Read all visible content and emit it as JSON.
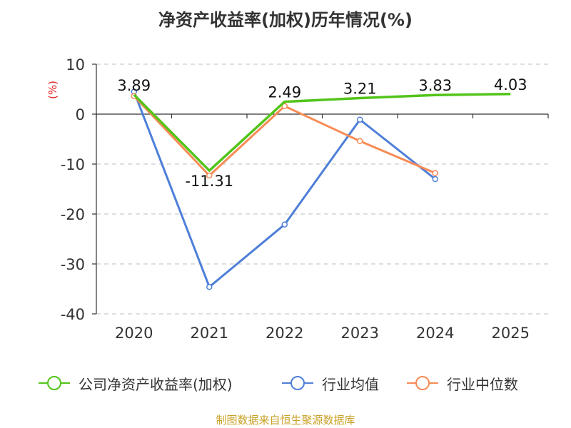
{
  "chart_data": {
    "type": "line",
    "title": "净资产收益率(加权)历年情况(%)",
    "ylabel": "(%)",
    "ylim": [
      -40,
      10
    ],
    "yticks": [
      10,
      0,
      -10,
      -20,
      -30,
      -40
    ],
    "categories": [
      "2020",
      "2021",
      "2022",
      "2023",
      "2024",
      "2025"
    ],
    "grid": true,
    "legend_position": "bottom",
    "series": [
      {
        "name": "公司净资产收益率(加权)",
        "color": "#52c41a",
        "values": [
          3.89,
          -11.31,
          2.49,
          3.21,
          3.83,
          4.03
        ],
        "labels": [
          "3.89",
          "-11.31",
          "2.49",
          "3.21",
          "3.83",
          "4.03"
        ]
      },
      {
        "name": "行业均值",
        "color": "#4e7fd8",
        "values": [
          4.5,
          -34.6,
          -22.1,
          -1.1,
          -13.0,
          null
        ]
      },
      {
        "name": "行业中位数",
        "color": "#f78b55",
        "values": [
          3.6,
          -12.3,
          1.6,
          -5.4,
          -11.8,
          null
        ]
      }
    ]
  },
  "source": "制图数据来自恒生聚源数据库"
}
